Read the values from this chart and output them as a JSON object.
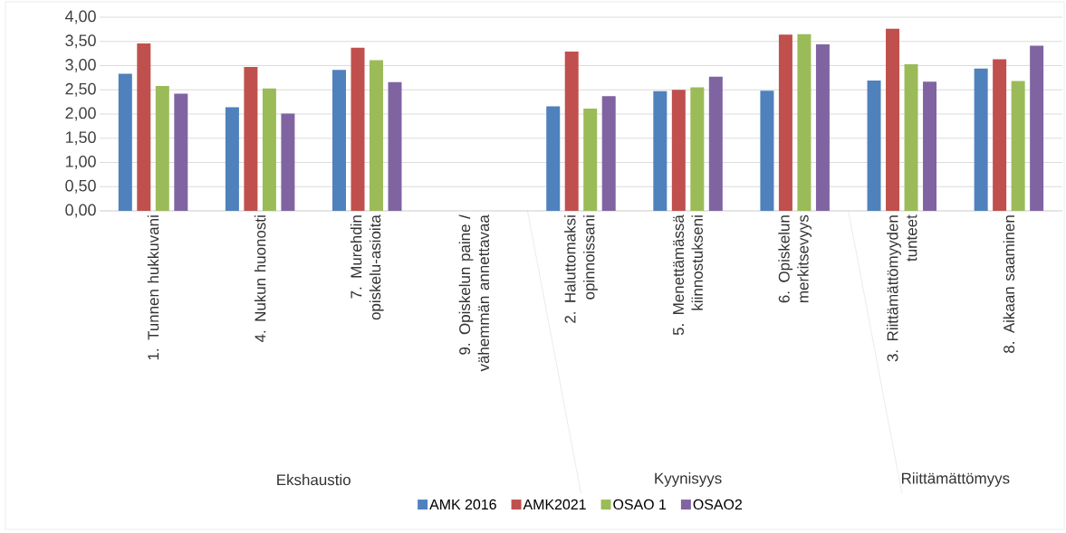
{
  "chart_data": {
    "type": "bar",
    "categories": [
      "1. Tunnen hukkuvani",
      "4. Nukun huonosti",
      "7. Murehdin opiskelu-asioita",
      "9. Opiskelun paine / vähemmän annettavaa",
      "2. Haluttomaksi opinnoissani",
      "5. Menettämässä kiinnostukseni",
      "6. Opiskelun merkitsevyys",
      "3. Riittämättömyyden tunteet",
      "8. Aikaan saaminen"
    ],
    "series": [
      {
        "name": "AMK 2016",
        "color": "#4f81bd",
        "values": [
          2.83,
          2.14,
          2.91,
          null,
          2.16,
          2.47,
          2.48,
          2.69,
          2.94
        ]
      },
      {
        "name": "AMK2021",
        "color": "#c0504d",
        "values": [
          3.46,
          2.97,
          3.37,
          null,
          3.29,
          2.5,
          3.64,
          3.76,
          3.13
        ]
      },
      {
        "name": "OSAO 1",
        "color": "#9bbb59",
        "values": [
          2.58,
          2.53,
          3.11,
          null,
          2.11,
          2.55,
          3.65,
          3.03,
          2.68
        ]
      },
      {
        "name": "OSAO2",
        "color": "#8064a2",
        "values": [
          2.42,
          2.01,
          2.66,
          null,
          2.37,
          2.77,
          3.44,
          2.67,
          3.41
        ]
      }
    ],
    "annotations": [
      "Ekshaustio",
      "Kyynisyys",
      "Riittämättömyys"
    ],
    "ylim": [
      0,
      4
    ],
    "yticks": [
      {
        "value": 0,
        "label": "0,00"
      },
      {
        "value": 0.5,
        "label": "0,50"
      },
      {
        "value": 1,
        "label": "1,00"
      },
      {
        "value": 1.5,
        "label": "1,50"
      },
      {
        "value": 2,
        "label": "2,00"
      },
      {
        "value": 2.5,
        "label": "2,50"
      },
      {
        "value": 3,
        "label": "3,00"
      },
      {
        "value": 3.5,
        "label": "3,50"
      },
      {
        "value": 4,
        "label": "4,00"
      }
    ],
    "grid": "y",
    "legend": "bottom"
  }
}
